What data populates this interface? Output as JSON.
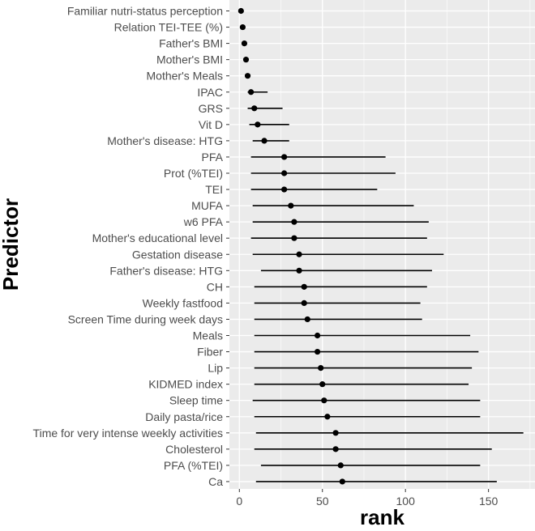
{
  "chart_data": {
    "type": "scatter",
    "subtype": "point-range",
    "xlabel": "rank",
    "ylabel": "Predictor",
    "xlim": [
      -6,
      178
    ],
    "xticks": [
      0,
      50,
      100,
      150
    ],
    "grid": true,
    "background": "#EBEBEB",
    "grid_color": "#FFFFFF",
    "point_color": "#000000",
    "predictors": [
      "Familiar nutri-status perception",
      "Relation TEI-TEE (%)",
      "Father's BMI",
      "Mother's BMI",
      "Mother's Meals",
      "IPAC",
      "GRS",
      "Vit D",
      "Mother's disease: HTG",
      "PFA",
      "Prot (%TEI)",
      "TEI",
      "MUFA",
      "w6 PFA",
      "Mother's educational level",
      "Gestation disease",
      "Father's disease: HTG",
      "CH",
      "Weekly fastfood",
      "Screen Time during week days",
      "Meals",
      "Fiber",
      "Lip",
      "KIDMED index",
      "Sleep time",
      "Daily pasta/rice",
      "Time for very intense weekly activities",
      "Cholesterol",
      "PFA (%TEI)",
      "Ca"
    ],
    "rank": [
      1,
      2,
      3,
      4,
      5,
      7,
      9,
      11,
      15,
      27,
      27,
      27,
      31,
      33,
      33,
      36,
      36,
      39,
      39,
      41,
      47,
      47,
      49,
      50,
      51,
      53,
      58,
      58,
      61,
      62
    ],
    "lower": [
      1,
      2,
      3,
      4,
      5,
      5,
      5,
      6,
      8,
      7,
      7,
      7,
      8,
      8,
      7,
      8,
      13,
      9,
      9,
      9,
      9,
      9,
      9,
      9,
      8,
      9,
      10,
      9,
      13,
      10
    ],
    "upper": [
      1,
      2,
      3,
      4,
      5,
      17,
      26,
      30,
      30,
      88,
      94,
      83,
      105,
      114,
      113,
      123,
      116,
      113,
      109,
      110,
      139,
      144,
      140,
      138,
      145,
      145,
      171,
      152,
      145,
      155
    ]
  }
}
